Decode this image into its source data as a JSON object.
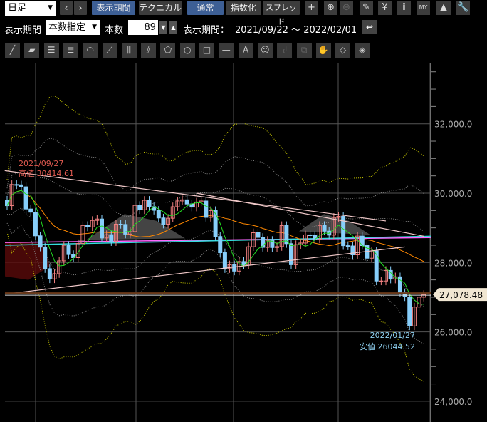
{
  "toolbar1": {
    "timeframe": "日足",
    "prev": "‹",
    "next": "›",
    "period_tab": "表示期間",
    "technical_tab": "テクニカル",
    "normal": "通常",
    "index": "指数化",
    "spread": "スプレッド",
    "crosshair": "+",
    "zoom_in": "⊕",
    "zoom_out": "⊖",
    "pencil": "✎",
    "yen": "¥",
    "info": "i",
    "my": "MY",
    "area": "▲",
    "wrench": "🔧"
  },
  "toolbar2": {
    "period_label": "表示期間",
    "mode": "本数指定",
    "count_label": "本数",
    "count": "89",
    "range_label": "表示期間：",
    "range": "2021/09/22 ～ 2022/02/01",
    "reset": "↩"
  },
  "drawing_tools": [
    "trendline",
    "parallel",
    "hlines3",
    "hlines5",
    "arc",
    "fan",
    "vlines",
    "gann",
    "polygon",
    "circle",
    "rect",
    "hline",
    "text",
    "icon",
    "undo",
    "copy",
    "hand",
    "eraser",
    "text-eraser"
  ],
  "drawing_glyphs": [
    "╱",
    "▰",
    "☰",
    "≣",
    "◠",
    "⟋",
    "⫼",
    "⫽",
    "⬠",
    "○",
    "□",
    "—",
    "A",
    "☺",
    "↲",
    "⧉",
    "✋",
    "◇",
    "◈"
  ],
  "chart_data": {
    "type": "candlestick",
    "start": "2021/09/22",
    "end": "2022/02/01",
    "yticks": [
      "32,000.0",
      "30,000.0",
      "28,000.0",
      "26,000.0",
      "24,000.0"
    ],
    "ytick_values": [
      32000,
      30000,
      28000,
      26000,
      24000
    ],
    "ylim": [
      23500,
      33700
    ],
    "first_open": 29800,
    "closes": [
      29639,
      30249,
      30240,
      30183,
      29544,
      29452,
      28771,
      28444,
      27822,
      27528,
      27678,
      28048,
      28498,
      28230,
      28140,
      28550,
      29068,
      29025,
      29215,
      29255,
      28708,
      28804,
      28600,
      29106,
      29098,
      28820,
      28892,
      29647,
      29520,
      29794,
      29611,
      29507,
      29285,
      29106,
      29277,
      29609,
      29776,
      29808,
      29688,
      29598,
      29745,
      29774,
      29302,
      29499,
      28751,
      28283,
      27821,
      27935,
      27753,
      28029,
      27927,
      28455,
      28860,
      28725,
      28437,
      28640,
      28432,
      28459,
      29066,
      28545,
      27937,
      28517,
      28562,
      28798,
      28782,
      28676,
      29069,
      28906,
      28791,
      29301,
      29332,
      28487,
      28478,
      28222,
      28765,
      28489,
      28124,
      28333,
      27467,
      27467,
      27772,
      27522,
      27588,
      27131,
      27011,
      26170,
      26717,
      27001,
      27078
    ],
    "high_annotation": {
      "date": "2021/09/27",
      "label": "高値 30414.61",
      "index": 2,
      "value": 30414.61
    },
    "low_annotation": {
      "date": "2022/01/27",
      "label": "安値 26044.52",
      "index": 85,
      "value": 26044.52
    },
    "last_price": "27,078.48",
    "last_value": 27078.48,
    "long_ma": [
      {
        "from": 28580,
        "to": 28720,
        "color": "#ff66ff"
      },
      {
        "from": 28500,
        "to": 28760,
        "color": "#33dddd"
      }
    ],
    "trendlines": [
      {
        "from": [
          -0.5,
          30650
        ],
        "to": [
          80,
          29200
        ]
      },
      {
        "from": [
          -0.5,
          27090
        ],
        "to": [
          84,
          28450
        ]
      },
      {
        "from": [
          40,
          30000
        ],
        "to": [
          88,
          28760
        ]
      }
    ],
    "colors": {
      "up": "#f08080",
      "down": "#87cefa",
      "ma_short": "#22dd22",
      "ma_mid": "#ff8800",
      "band": "#888888",
      "band3": "#cccc00",
      "trend": "#f0c8c8",
      "last": "#f0e6d2"
    }
  }
}
